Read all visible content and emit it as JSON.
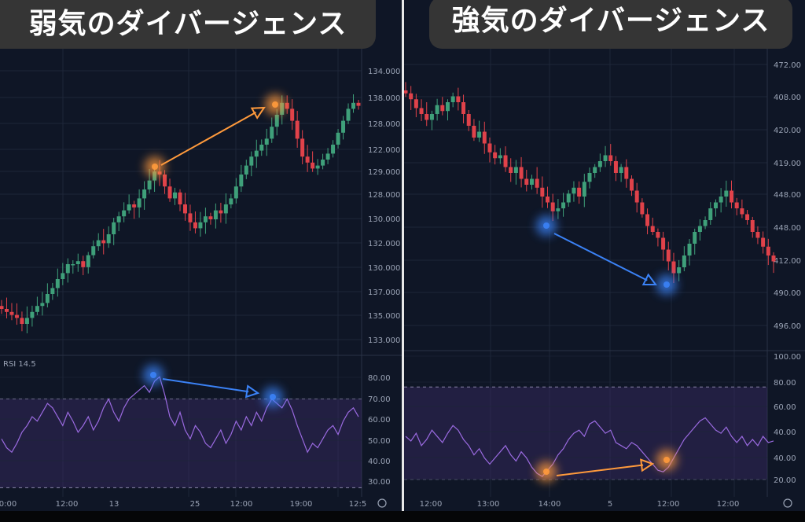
{
  "colors": {
    "background": "#0f1626",
    "grid": "#1d2638",
    "up": "#3fa07a",
    "down": "#e0424a",
    "rsi_line": "#9a6ae0",
    "rsi_band": "#3a2a66",
    "bearish_marker": "#ff9a3c",
    "bullish_marker": "#3b82f6",
    "title_bg": "#353535"
  },
  "chart_data": [
    {
      "type": "candlestick",
      "title": "弱気のダイバージェンス",
      "price_ticks": [
        "134.000",
        "138.000",
        "128.000",
        "122.000",
        "129.000",
        "128.000",
        "130.000",
        "132.000",
        "130.000",
        "137.000",
        "135.000",
        "133.000"
      ],
      "time_ticks": [
        "0:00",
        "12:00",
        "13",
        "25",
        "12:00",
        "19:00",
        "12:5"
      ],
      "ylim": [
        0,
        100
      ],
      "closes": [
        15,
        14,
        13,
        12,
        10,
        12,
        14,
        16,
        17,
        20,
        22,
        25,
        27,
        30,
        30,
        31,
        29,
        33,
        36,
        38,
        37,
        40,
        44,
        46,
        48,
        50,
        49,
        52,
        55,
        58,
        61,
        60,
        56,
        52,
        54,
        50,
        47,
        44,
        42,
        44,
        46,
        45,
        48,
        47,
        50,
        52,
        56,
        60,
        63,
        66,
        68,
        70,
        72,
        76,
        80,
        84,
        82,
        78,
        72,
        66,
        64,
        62,
        63,
        65,
        67,
        70,
        74,
        78,
        82,
        84,
        83
      ],
      "rsi": {
        "label": "RSI 14.5",
        "ticks": [
          "80.00",
          "70.00",
          "60.00",
          "50.00",
          "40.00",
          "30.00"
        ],
        "ylim": [
          28,
          84
        ],
        "band": [
          30,
          70
        ],
        "values": [
          52,
          48,
          46,
          50,
          55,
          58,
          62,
          60,
          64,
          68,
          66,
          62,
          58,
          64,
          60,
          55,
          58,
          62,
          56,
          60,
          66,
          70,
          64,
          60,
          66,
          70,
          72,
          74,
          76,
          73,
          78,
          80,
          72,
          62,
          58,
          64,
          56,
          52,
          58,
          55,
          50,
          48,
          52,
          56,
          50,
          54,
          60,
          56,
          62,
          58,
          64,
          60,
          66,
          70,
          68,
          66,
          70,
          65,
          58,
          52,
          46,
          50,
          48,
          52,
          56,
          58,
          54,
          60,
          64,
          66,
          62
        ]
      },
      "markers": {
        "type": "bearish",
        "price_arrow": "orange",
        "rsi_arrow": "blue"
      }
    },
    {
      "type": "candlestick",
      "title": "強気のダイバージェンス",
      "price_ticks": [
        "472.00",
        "408.00",
        "420.00",
        "419.00",
        "448.00",
        "448.00",
        "412.00",
        "490.00",
        "496.00"
      ],
      "time_ticks": [
        "12:00",
        "13:00",
        "14:00",
        "5",
        "12:00",
        "12:00"
      ],
      "ylim": [
        0,
        100
      ],
      "closes": [
        87,
        85,
        82,
        80,
        78,
        80,
        83,
        81,
        84,
        86,
        84,
        80,
        76,
        72,
        74,
        70,
        67,
        65,
        66,
        62,
        60,
        62,
        58,
        56,
        58,
        55,
        52,
        50,
        47,
        48,
        50,
        53,
        55,
        52,
        57,
        60,
        62,
        64,
        66,
        64,
        60,
        62,
        58,
        54,
        50,
        46,
        42,
        40,
        38,
        34,
        30,
        26,
        28,
        32,
        36,
        40,
        42,
        44,
        48,
        50,
        52,
        54,
        50,
        48,
        46,
        44,
        40,
        38,
        35,
        32,
        30
      ],
      "rsi": {
        "ticks": [
          "100.00",
          "80.00",
          "60.00",
          "40.00",
          "40.00",
          "20.00"
        ],
        "ylim": [
          20,
          100
        ],
        "band": [
          20,
          80
        ],
        "values": [
          48,
          45,
          50,
          42,
          46,
          52,
          48,
          44,
          50,
          55,
          52,
          46,
          42,
          36,
          40,
          34,
          30,
          34,
          38,
          42,
          36,
          32,
          38,
          34,
          28,
          24,
          22,
          26,
          30,
          36,
          40,
          46,
          50,
          52,
          48,
          56,
          58,
          54,
          50,
          52,
          44,
          42,
          40,
          44,
          42,
          38,
          34,
          30,
          26,
          25,
          28,
          34,
          40,
          46,
          50,
          54,
          58,
          60,
          56,
          52,
          50,
          54,
          48,
          44,
          48,
          42,
          46,
          42,
          48,
          44,
          45
        ]
      },
      "markers": {
        "type": "bullish",
        "price_arrow": "blue",
        "rsi_arrow": "orange"
      }
    }
  ]
}
